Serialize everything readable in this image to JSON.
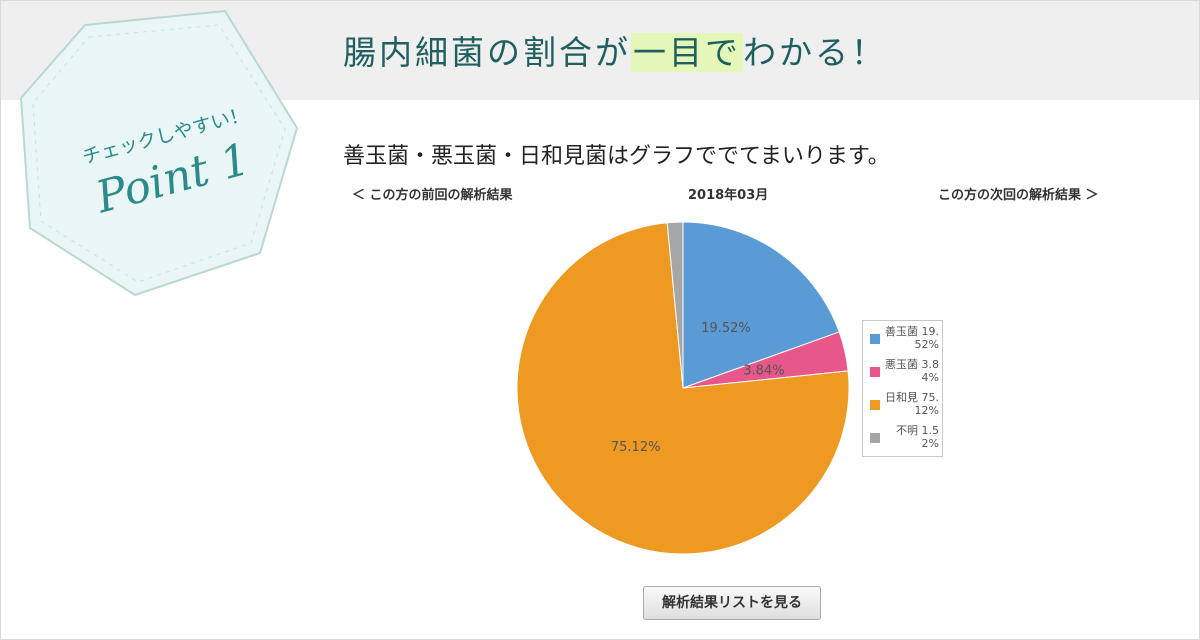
{
  "headline": {
    "pre": "腸内細菌の割合が",
    "highlight": "一目で",
    "post": "わかる！"
  },
  "badge": {
    "small": "チェックしやすい！",
    "big": "Point 1"
  },
  "intro": "善玉菌・悪玉菌・日和見菌はグラフででてまいります。",
  "nav": {
    "prev": "＜ この方の前回の解析結果",
    "month": "2018年03月",
    "next": "この方の次回の解析結果 ＞"
  },
  "colors": {
    "good": "#5b9bd5",
    "bad": "#e8578a",
    "opportunistic": "#ee9a22",
    "unknown": "#a6a6a6",
    "accent": "#1f5f5f"
  },
  "chart_data": {
    "type": "pie",
    "categories": [
      "善玉菌",
      "悪玉菌",
      "日和見菌",
      "不明"
    ],
    "values": [
      19.52,
      3.84,
      75.12,
      1.52
    ],
    "data_labels": [
      "19.52%",
      "3.84%",
      "75.12%",
      ""
    ]
  },
  "legend": [
    {
      "label": "善玉菌",
      "value": "19.52%",
      "color": "#5b9bd5"
    },
    {
      "label": "悪玉菌",
      "value": "3.84%",
      "color": "#e8578a"
    },
    {
      "label": "日和見",
      "value": "75.12%",
      "color": "#ee9a22"
    },
    {
      "label": "不明",
      "value": "1.52%",
      "color": "#a6a6a6"
    }
  ],
  "button": {
    "label": "解析結果リストを見る"
  }
}
